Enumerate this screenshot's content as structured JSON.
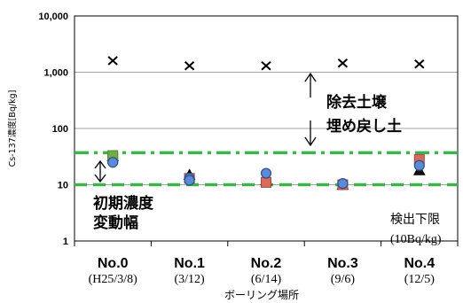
{
  "colors": {
    "soil_marker": "#000000",
    "series_a": "#d9695f",
    "series_b": "#70ad47",
    "series_c": "#5b8bd6",
    "detection_limit_line": "#3cb44b",
    "gridline": "#a0a0a0"
  },
  "chart_data": {
    "type": "scatter",
    "log_scale_y": true,
    "ylim": [
      1,
      10000
    ],
    "ylabel": "Cs-137濃度[Bq/kg]",
    "yticks": [
      "1",
      "10",
      "100",
      "1,000",
      "10,000"
    ],
    "xlabel": "ボーリング場所",
    "categories": [
      {
        "name": "No.0",
        "date": "(H25/3/8)"
      },
      {
        "name": "No.1",
        "date": "(3/12)"
      },
      {
        "name": "No.2",
        "date": "(6/14)"
      },
      {
        "name": "No.3",
        "date": "(9/6)"
      },
      {
        "name": "No.4",
        "date": "(12/5)"
      }
    ],
    "grid": true,
    "series": [
      {
        "marker": "x",
        "values": [
          1600,
          1300,
          1300,
          1450,
          1400
        ]
      },
      {
        "marker": "triangle",
        "values": [
          32,
          15,
          12,
          10,
          18
        ]
      },
      {
        "marker": "square-red",
        "values": [
          30,
          13,
          11,
          10,
          28
        ]
      },
      {
        "marker": "square-green",
        "values": [
          33,
          null,
          null,
          null,
          null
        ]
      },
      {
        "marker": "circle-blue",
        "values": [
          25,
          13,
          16,
          10.5,
          22
        ]
      },
      {
        "marker": "circle-blue",
        "values": [
          null,
          12,
          null,
          null,
          null
        ]
      }
    ],
    "reference_lines": [
      {
        "style": "dash-dot",
        "value": 37
      },
      {
        "style": "dashed",
        "value": 10
      }
    ],
    "annotations": {
      "removed_soil": "除去土壌",
      "backfill_soil": "埋め戻し土",
      "initial_range_line1": "初期濃度",
      "initial_range_line2": "変動幅",
      "detection_limit_line1": "検出下限",
      "detection_limit_line2": "(10Bq/kg)"
    }
  }
}
